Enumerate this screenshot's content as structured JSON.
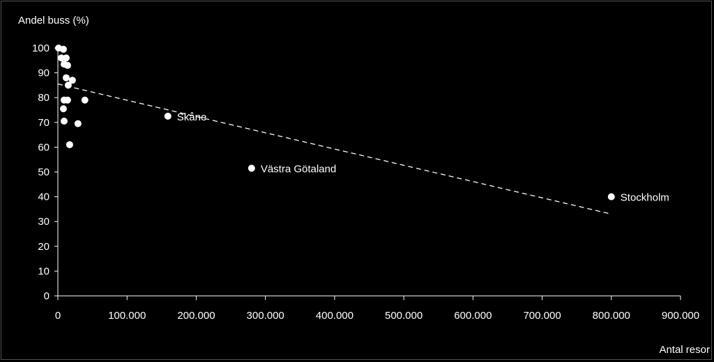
{
  "chart_data": {
    "type": "scatter",
    "ylabel": "Andel buss (%)",
    "xlabel": "Antal resor",
    "xlim": [
      0,
      900000
    ],
    "ylim": [
      0,
      100
    ],
    "x_ticks": [
      "0",
      "100.000",
      "200.000",
      "300.000",
      "400.000",
      "500.000",
      "600.000",
      "700.000",
      "800.000",
      "900.000"
    ],
    "y_ticks": [
      "0",
      "10",
      "20",
      "30",
      "40",
      "50",
      "60",
      "70",
      "80",
      "90",
      "100"
    ],
    "grid": false,
    "legend": "none",
    "points": [
      {
        "x": 1000,
        "y": 100,
        "label": ""
      },
      {
        "x": 8000,
        "y": 99.5,
        "label": ""
      },
      {
        "x": 5000,
        "y": 96,
        "label": ""
      },
      {
        "x": 12000,
        "y": 96,
        "label": ""
      },
      {
        "x": 9000,
        "y": 93.5,
        "label": ""
      },
      {
        "x": 14000,
        "y": 93,
        "label": ""
      },
      {
        "x": 12000,
        "y": 88,
        "label": ""
      },
      {
        "x": 21000,
        "y": 87,
        "label": ""
      },
      {
        "x": 15000,
        "y": 85,
        "label": ""
      },
      {
        "x": 9000,
        "y": 79,
        "label": ""
      },
      {
        "x": 14000,
        "y": 79,
        "label": ""
      },
      {
        "x": 39000,
        "y": 79,
        "label": ""
      },
      {
        "x": 8000,
        "y": 75.5,
        "label": ""
      },
      {
        "x": 9000,
        "y": 70.5,
        "label": ""
      },
      {
        "x": 29000,
        "y": 69.5,
        "label": ""
      },
      {
        "x": 17000,
        "y": 61,
        "label": ""
      },
      {
        "x": 159000,
        "y": 72.5,
        "label": "Skåne"
      },
      {
        "x": 280000,
        "y": 51.5,
        "label": "Västra Götaland"
      },
      {
        "x": 800000,
        "y": 40,
        "label": "Stockholm"
      }
    ],
    "trendline": {
      "style": "dashed",
      "x": [
        0,
        800000
      ],
      "y": [
        85.5,
        33
      ]
    },
    "colors": {
      "background": "#000000",
      "marker": "#ffffff",
      "text": "#ffffff",
      "axis": "#ffffff"
    }
  }
}
